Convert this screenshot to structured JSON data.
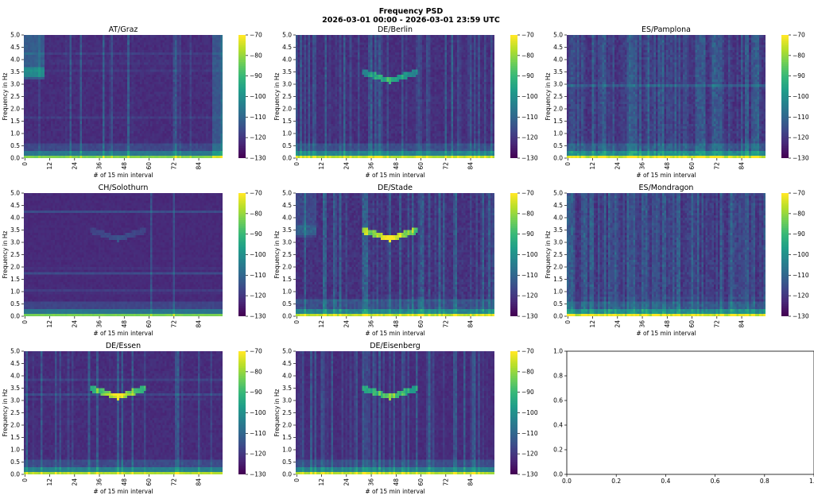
{
  "figure": {
    "title_line1": "Frequency PSD",
    "title_line2": "2026-03-01 00:00 - 2026-03-01 23:59 UTC",
    "colormap": "viridis",
    "colormap_stops": [
      "#440154",
      "#482878",
      "#3e4989",
      "#31688e",
      "#26828e",
      "#1f9e89",
      "#35b779",
      "#6ece58",
      "#b5de2b",
      "#fde725"
    ],
    "background": "#ffffff"
  },
  "chart_data": [
    {
      "type": "heatmap",
      "title": "AT/Graz",
      "xlabel": "# of 15 min interval",
      "ylabel": "Frequency in Hz",
      "x_ticks": [
        "0",
        "12",
        "24",
        "36",
        "48",
        "60",
        "72",
        "84"
      ],
      "y_ticks": [
        "0.0",
        "0.5",
        "1.0",
        "1.5",
        "2.0",
        "2.5",
        "3.0",
        "3.5",
        "4.0",
        "4.5",
        "5.0"
      ],
      "xlim": [
        0,
        96
      ],
      "ylim": [
        0,
        5.0
      ],
      "colorbar_ticks": [
        "−70",
        "−80",
        "−90",
        "−100",
        "−110",
        "−120",
        "−130"
      ],
      "clim": [
        -130,
        -70
      ],
      "features": {
        "noise": 0.45,
        "low_band": 0.9,
        "vlines": 0.15,
        "hlines": 0.3,
        "v_shape": 0,
        "block_left": 1,
        "block_right": 1
      }
    },
    {
      "type": "heatmap",
      "title": "DE/Berlin",
      "xlabel": "# of 15 min interval",
      "ylabel": "Frequency in Hz",
      "x_ticks": [
        "0",
        "12",
        "24",
        "36",
        "48",
        "60",
        "72",
        "84"
      ],
      "y_ticks": [
        "0.0",
        "0.5",
        "1.0",
        "1.5",
        "2.0",
        "2.5",
        "3.0",
        "3.5",
        "4.0",
        "4.5",
        "5.0"
      ],
      "xlim": [
        0,
        96
      ],
      "ylim": [
        0,
        5.0
      ],
      "colorbar_ticks": [
        "−70",
        "−80",
        "−90",
        "−100",
        "−110",
        "−120",
        "−130"
      ],
      "clim": [
        -130,
        -70
      ],
      "features": {
        "noise": 0.55,
        "low_band": 1.0,
        "vlines": 0.35,
        "hlines": 0.2,
        "v_shape": 0.55,
        "block_left": 0,
        "block_right": 0
      }
    },
    {
      "type": "heatmap",
      "title": "ES/Pamplona",
      "xlabel": "# of 15 min interval",
      "ylabel": "Frequency in Hz",
      "x_ticks": [
        "0",
        "12",
        "24",
        "36",
        "48",
        "60",
        "72",
        "84"
      ],
      "y_ticks": [
        "0.0",
        "0.5",
        "1.0",
        "1.5",
        "2.0",
        "2.5",
        "3.0",
        "3.5",
        "4.0",
        "4.5",
        "5.0"
      ],
      "xlim": [
        0,
        96
      ],
      "ylim": [
        0,
        5.0
      ],
      "colorbar_ticks": [
        "−70",
        "−80",
        "−90",
        "−100",
        "−110",
        "−120",
        "−130"
      ],
      "clim": [
        -130,
        -70
      ],
      "features": {
        "noise": 0.75,
        "low_band": 1.0,
        "vlines": 0.9,
        "hlines": 0.1,
        "v_shape": 0,
        "block_left": 0,
        "block_right": 0
      }
    },
    {
      "type": "heatmap",
      "title": "CH/Solothurn",
      "xlabel": "# of 15 min interval",
      "ylabel": "Frequency in Hz",
      "x_ticks": [
        "0",
        "12",
        "24",
        "36",
        "48",
        "60",
        "72",
        "84"
      ],
      "y_ticks": [
        "0.0",
        "0.5",
        "1.0",
        "1.5",
        "2.0",
        "2.5",
        "3.0",
        "3.5",
        "4.0",
        "4.5",
        "5.0"
      ],
      "xlim": [
        0,
        96
      ],
      "ylim": [
        0,
        5.0
      ],
      "colorbar_ticks": [
        "−70",
        "−80",
        "−90",
        "−100",
        "−110",
        "−120",
        "−130"
      ],
      "clim": [
        -130,
        -70
      ],
      "features": {
        "noise": 0.3,
        "low_band": 0.9,
        "vlines": 0.05,
        "hlines": 0.3,
        "v_shape": 0.15,
        "block_left": 0,
        "block_right": 0
      }
    },
    {
      "type": "heatmap",
      "title": "DE/Stade",
      "xlabel": "# of 15 min interval",
      "ylabel": "Frequency in Hz",
      "x_ticks": [
        "0",
        "12",
        "24",
        "36",
        "48",
        "60",
        "72",
        "84"
      ],
      "y_ticks": [
        "0.0",
        "0.5",
        "1.0",
        "1.5",
        "2.0",
        "2.5",
        "3.0",
        "3.5",
        "4.0",
        "4.5",
        "5.0"
      ],
      "xlim": [
        0,
        96
      ],
      "ylim": [
        0,
        5.0
      ],
      "colorbar_ticks": [
        "−70",
        "−80",
        "−90",
        "−100",
        "−110",
        "−120",
        "−130"
      ],
      "clim": [
        -130,
        -70
      ],
      "features": {
        "noise": 0.7,
        "low_band": 1.0,
        "vlines": 0.4,
        "hlines": 0.2,
        "v_shape": 1.0,
        "block_left": 0.5,
        "block_right": 0
      }
    },
    {
      "type": "heatmap",
      "title": "ES/Mondragon",
      "xlabel": "# of 15 min interval",
      "ylabel": "Frequency in Hz",
      "x_ticks": [
        "0",
        "12",
        "24",
        "36",
        "48",
        "60",
        "72",
        "84"
      ],
      "y_ticks": [
        "0.0",
        "0.5",
        "1.0",
        "1.5",
        "2.0",
        "2.5",
        "3.0",
        "3.5",
        "4.0",
        "4.5",
        "5.0"
      ],
      "xlim": [
        0,
        96
      ],
      "ylim": [
        0,
        5.0
      ],
      "colorbar_ticks": [
        "−70",
        "−80",
        "−90",
        "−100",
        "−110",
        "−120",
        "−130"
      ],
      "clim": [
        -130,
        -70
      ],
      "features": {
        "noise": 0.75,
        "low_band": 1.0,
        "vlines": 0.9,
        "hlines": 0.15,
        "v_shape": 0,
        "block_left": 0,
        "block_right": 0
      }
    },
    {
      "type": "heatmap",
      "title": "DE/Essen",
      "xlabel": "# of 15 min interval",
      "ylabel": "Frequency in Hz",
      "x_ticks": [
        "0",
        "12",
        "24",
        "36",
        "48",
        "60",
        "72",
        "84"
      ],
      "y_ticks": [
        "0.0",
        "0.5",
        "1.0",
        "1.5",
        "2.0",
        "2.5",
        "3.0",
        "3.5",
        "4.0",
        "4.5",
        "5.0"
      ],
      "xlim": [
        0,
        96
      ],
      "ylim": [
        0,
        5.0
      ],
      "colorbar_ticks": [
        "−70",
        "−80",
        "−90",
        "−100",
        "−110",
        "−120",
        "−130"
      ],
      "clim": [
        -130,
        -70
      ],
      "features": {
        "noise": 0.45,
        "low_band": 1.0,
        "vlines": 0.2,
        "hlines": 0.35,
        "v_shape": 0.9,
        "block_left": 0,
        "block_right": 0
      }
    },
    {
      "type": "heatmap",
      "title": "DE/Eisenberg",
      "xlabel": "# of 15 min interval",
      "ylabel": "Frequency in Hz",
      "x_ticks": [
        "0",
        "12",
        "24",
        "36",
        "48",
        "60",
        "72",
        "84"
      ],
      "y_ticks": [
        "0.0",
        "0.5",
        "1.0",
        "1.5",
        "2.0",
        "2.5",
        "3.0",
        "3.5",
        "4.0",
        "4.5",
        "5.0"
      ],
      "xlim": [
        0,
        96
      ],
      "ylim": [
        0,
        5.0
      ],
      "colorbar_ticks": [
        "−70",
        "−80",
        "−90",
        "−100",
        "−110",
        "−120",
        "−130"
      ],
      "clim": [
        -130,
        -70
      ],
      "features": {
        "noise": 0.4,
        "low_band": 1.0,
        "vlines": 0.45,
        "hlines": 0.4,
        "v_shape": 0.7,
        "block_left": 0,
        "block_right": 0
      }
    },
    {
      "type": "line",
      "title": "",
      "xlabel": "",
      "ylabel": "",
      "x_ticks": [
        "0.0",
        "0.2",
        "0.4",
        "0.6",
        "0.8",
        "1.0"
      ],
      "y_ticks": [
        "0.0",
        "0.2",
        "0.4",
        "0.6",
        "0.8",
        "1.0"
      ],
      "xlim": [
        0,
        1
      ],
      "ylim": [
        0,
        1
      ],
      "empty": true
    }
  ]
}
